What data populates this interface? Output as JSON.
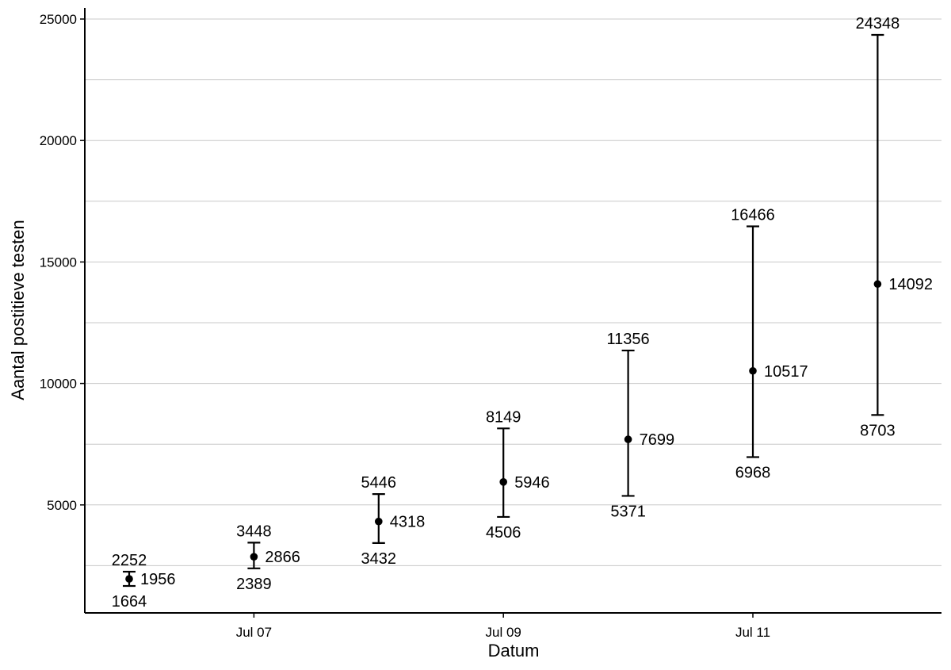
{
  "chart_data": {
    "type": "scatter",
    "title": "",
    "xlabel": "Datum",
    "ylabel": "Aantal postitieve testen",
    "x_ticks": [
      "Jul 07",
      "Jul 09",
      "Jul 11"
    ],
    "y_ticks": [
      5000,
      10000,
      15000,
      20000,
      25000
    ],
    "ylim": [
      0,
      25000
    ],
    "grid": "horizontal",
    "legend": "none",
    "points": [
      {
        "date": "2020-07-06",
        "value": 1956,
        "lower": 1664,
        "upper": 2252
      },
      {
        "date": "2020-07-07",
        "value": 2866,
        "lower": 2389,
        "upper": 3448
      },
      {
        "date": "2020-07-08",
        "value": 4318,
        "lower": 3432,
        "upper": 5446
      },
      {
        "date": "2020-07-09",
        "value": 5946,
        "lower": 4506,
        "upper": 8149
      },
      {
        "date": "2020-07-10",
        "value": 7699,
        "lower": 5371,
        "upper": 11356
      },
      {
        "date": "2020-07-11",
        "value": 10517,
        "lower": 6968,
        "upper": 16466
      },
      {
        "date": "2020-07-12",
        "value": 14092,
        "lower": 8703,
        "upper": 24348
      }
    ]
  }
}
